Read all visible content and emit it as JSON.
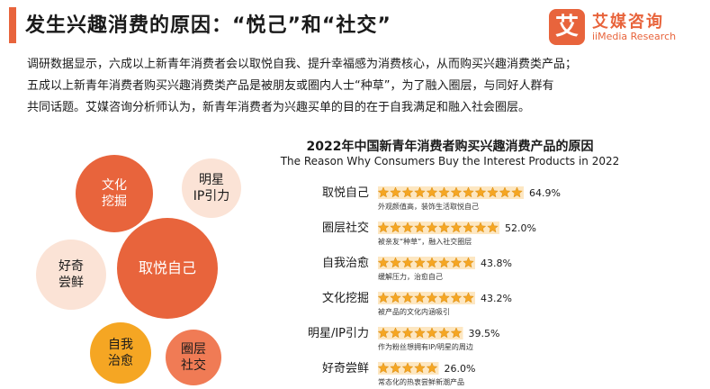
{
  "title": "发生兴趣消费的原因：“悦己”和“社交”",
  "logo": {
    "mark": "艾",
    "name_cn": "艾媒咨询",
    "name_en": "iiMedia Research",
    "color": "#e8643c"
  },
  "paragraph": [
    "调研数据显示，六成以上新青年消费者会以取悦自我、提升幸福感为消费核心，从而购买兴趣消费类产品；",
    "五成以上新青年消费者购买兴趣消费类产品是被朋友或圈内人士“种草”，为了融入圈层，与同好人群有",
    "共同话题。艾媒咨询分析师认为，新青年消费者为兴趣买单的目的在于自我满足和融入社会圈层。"
  ],
  "bubbles": [
    {
      "label": "取悦自己",
      "color": "#e8643c",
      "style": "dark"
    },
    {
      "label": "文化\n挖掘",
      "color": "#e8643c",
      "style": "dark"
    },
    {
      "label": "明星\nIP引力",
      "color": "#fbe3d6",
      "style": "light"
    },
    {
      "label": "好奇\n尝鲜",
      "color": "#fbe3d6",
      "style": "light"
    },
    {
      "label": "自我\n治愈",
      "color": "#f5a623",
      "style": "light"
    },
    {
      "label": "圈层\n社交",
      "color": "#f07b55",
      "style": "light"
    }
  ],
  "chart_data": {
    "type": "bar",
    "title": "2022年中国新青年消费者购买兴趣消费产品的原因",
    "subtitle": "The Reason Why Consumers Buy the Interest Products in 2022",
    "unit": "%",
    "xlim": [
      0,
      100
    ],
    "bar_color": "#f5a623",
    "categories": [
      "取悦自己",
      "圈层社交",
      "自我治愈",
      "文化挖掘",
      "明星/IP引力",
      "好奇尝鲜"
    ],
    "values": [
      64.9,
      52.0,
      43.8,
      43.2,
      39.5,
      26.0
    ],
    "value_labels": [
      "64.9%",
      "52.0%",
      "43.8%",
      "43.2%",
      "39.5%",
      "26.0%"
    ],
    "notes": [
      "外观颜值高，装饰生活取悦自己",
      "被亲友“种草”，融入社交圈层",
      "缓解压力，治愈自己",
      "被产品的文化内涵吸引",
      "作为粉丝想拥有IP/明星的周边",
      "常态化的热衷尝鲜新潮产品"
    ]
  }
}
